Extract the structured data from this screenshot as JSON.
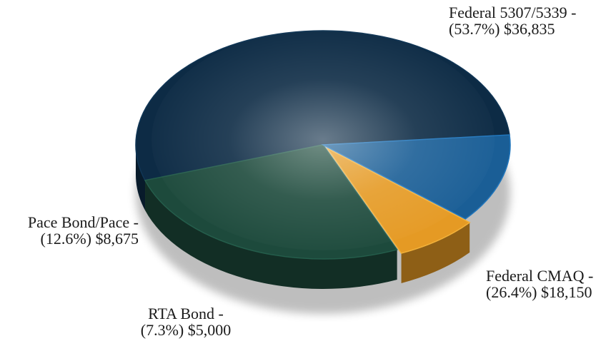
{
  "chart_data": {
    "type": "pie",
    "title": "",
    "slices": [
      {
        "name": "Federal 5307/5339",
        "percent_label": "(53.7%)",
        "amount_label": "$36,835",
        "value": 36835,
        "percent": 53.7,
        "color": "#0d2b45"
      },
      {
        "name": "Federal CMAQ",
        "percent_label": "(26.4%)",
        "amount_label": "$18,150",
        "value": 18150,
        "percent": 26.4,
        "color": "#1d4a3c"
      },
      {
        "name": "RTA Bond",
        "percent_label": "(7.3%)",
        "amount_label": "$5,000",
        "value": 5000,
        "percent": 7.3,
        "color": "#e59a24"
      },
      {
        "name": "Pace Bond/Pace",
        "percent_label": "(12.6%)",
        "amount_label": "$8,675",
        "value": 8675,
        "percent": 12.6,
        "color": "#1a5e96"
      }
    ]
  },
  "labels": {
    "federal_5307": {
      "line1": "Federal 5307/5339 -",
      "line2": "(53.7%) $36,835"
    },
    "federal_cmaq": {
      "line1": "Federal CMAQ -",
      "line2": "(26.4%) $18,150"
    },
    "rta_bond": {
      "line1": "RTA Bond -",
      "line2": "(7.3%) $5,000"
    },
    "pace_bond": {
      "line1": "Pace Bond/Pace -",
      "line2": "(12.6%) $8,675"
    }
  }
}
